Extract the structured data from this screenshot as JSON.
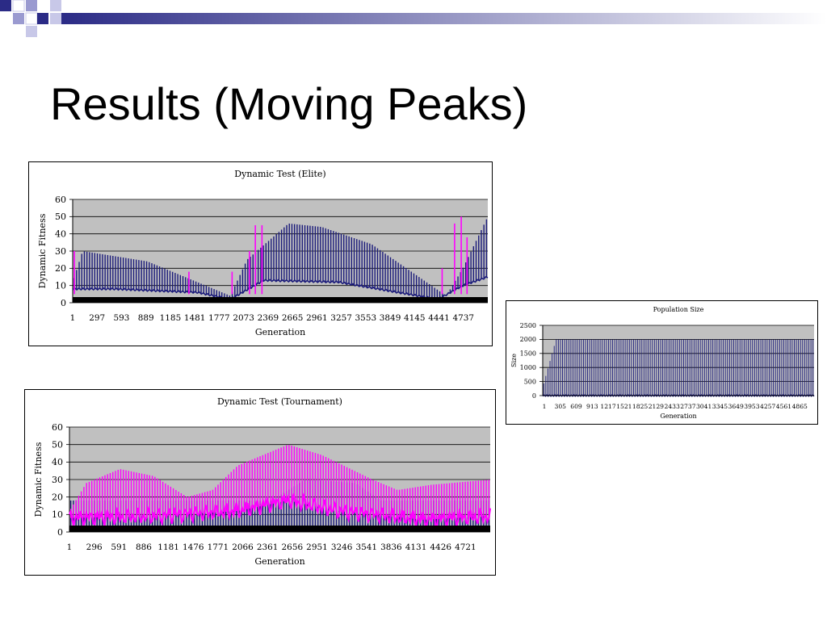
{
  "slide": {
    "title": "Results (Moving Peaks)"
  },
  "colors": {
    "plot_bg": "#c0c0c0",
    "navy": "#1a1a7a",
    "magenta": "#ff00ff",
    "deco_blue": "#3a3a8c",
    "deco_light": "#8c8cc8"
  },
  "chart_data": [
    {
      "id": "elite",
      "type": "line",
      "title": "Dynamic Test (Elite)",
      "xlabel": "Generation",
      "ylabel": "Dynamic Fitness",
      "ylim": [
        0,
        60
      ],
      "yticks": [
        "0",
        "10",
        "20",
        "30",
        "40",
        "50",
        "60"
      ],
      "xticks": [
        "1",
        "297",
        "593",
        "889",
        "1185",
        "1481",
        "1777",
        "2073",
        "2369",
        "2665",
        "2961",
        "3257",
        "3553",
        "3849",
        "4145",
        "4441",
        "4737"
      ],
      "xmax": 5000,
      "grid": true,
      "series": [
        {
          "color": "#1a1a7a",
          "peaks": [
            [
              0,
              12
            ],
            [
              120,
              30
            ],
            [
              900,
              24
            ],
            [
              1500,
              12
            ],
            [
              1900,
              4
            ],
            [
              2100,
              25
            ],
            [
              2600,
              46
            ],
            [
              3000,
              44
            ],
            [
              3600,
              34
            ],
            [
              4200,
              14
            ],
            [
              4500,
              4
            ],
            [
              4700,
              20
            ],
            [
              5000,
              50
            ]
          ],
          "base": [
            [
              0,
              8
            ],
            [
              500,
              8
            ],
            [
              1500,
              6
            ],
            [
              1900,
              2
            ],
            [
              2300,
              13
            ],
            [
              3200,
              12
            ],
            [
              4400,
              2
            ],
            [
              4700,
              10
            ],
            [
              5000,
              15
            ]
          ]
        },
        {
          "color": "#ff00ff",
          "spikes": [
            [
              20,
              30
            ],
            [
              1400,
              18
            ],
            [
              1920,
              18
            ],
            [
              2130,
              30
            ],
            [
              2200,
              45
            ],
            [
              2280,
              45
            ],
            [
              4450,
              20
            ],
            [
              4600,
              46
            ],
            [
              4680,
              50
            ],
            [
              4750,
              38
            ]
          ]
        }
      ]
    },
    {
      "id": "pop",
      "type": "line",
      "title": "Population Size",
      "xlabel": "Generation",
      "ylabel": "Size",
      "ylim": [
        0,
        2500
      ],
      "yticks": [
        "0",
        "500",
        "1000",
        "1500",
        "2000",
        "2500"
      ],
      "xticks": [
        "1",
        "305",
        "609",
        "913",
        "1217",
        "1521",
        "1825",
        "2129",
        "2433",
        "2737",
        "3041",
        "3345",
        "3649",
        "3953",
        "4257",
        "4561",
        "4865"
      ],
      "xmax": 5100,
      "grid": true,
      "series": [
        {
          "color": "#1a1a7a",
          "ramp": [
            [
              0,
              300
            ],
            [
              250,
              2000
            ],
            [
              5100,
              2000
            ]
          ],
          "base": [
            [
              0,
              0
            ],
            [
              5100,
              0
            ]
          ]
        }
      ]
    },
    {
      "id": "tournament",
      "type": "line",
      "title": "Dynamic Test (Tournament)",
      "xlabel": "Generation",
      "ylabel": "Dynamic Fitness",
      "ylim": [
        0,
        60
      ],
      "yticks": [
        "0",
        "10",
        "20",
        "30",
        "40",
        "50",
        "60"
      ],
      "xticks": [
        "1",
        "296",
        "591",
        "886",
        "1181",
        "1476",
        "1771",
        "2066",
        "2361",
        "2656",
        "2951",
        "3246",
        "3541",
        "3836",
        "4131",
        "4426",
        "4721"
      ],
      "xmax": 5000,
      "grid": true,
      "series": [
        {
          "color": "#1a1a7a",
          "peaks": [
            [
              2400,
              18
            ],
            [
              2800,
              30
            ],
            [
              3400,
              28
            ],
            [
              3700,
              18
            ]
          ]
        },
        {
          "color": "#ff00ff",
          "peaks": [
            [
              0,
              12
            ],
            [
              200,
              28
            ],
            [
              600,
              36
            ],
            [
              1000,
              32
            ],
            [
              1400,
              20
            ],
            [
              1700,
              24
            ],
            [
              2000,
              38
            ],
            [
              2600,
              50
            ],
            [
              3000,
              44
            ],
            [
              3600,
              30
            ],
            [
              3900,
              24
            ],
            [
              4300,
              27
            ],
            [
              5000,
              30
            ]
          ],
          "band": [
            [
              0,
              8
            ],
            [
              1000,
              9
            ],
            [
              2000,
              12
            ],
            [
              2600,
              18
            ],
            [
              3200,
              12
            ],
            [
              4200,
              7
            ],
            [
              5000,
              9
            ]
          ]
        }
      ]
    }
  ]
}
